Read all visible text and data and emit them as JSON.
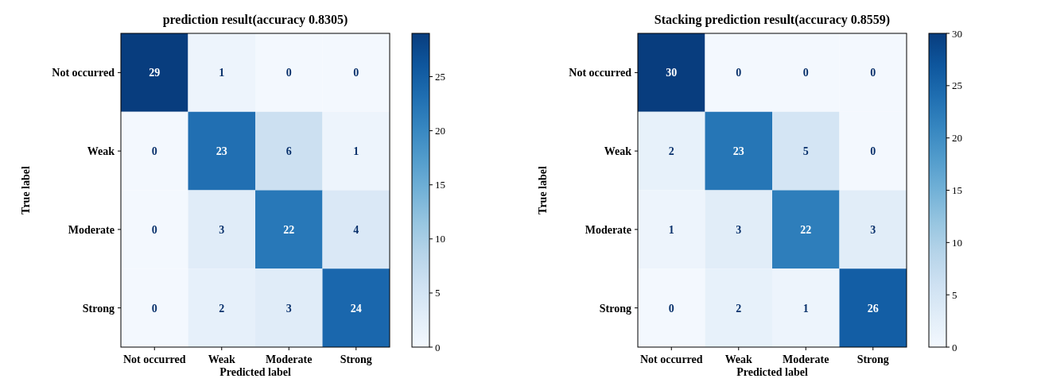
{
  "chart_data": [
    {
      "type": "heatmap",
      "title": "prediction result(accuracy 0.8305)",
      "xlabel": "Predicted label",
      "ylabel": "True label",
      "categories": [
        "Not occurred",
        "Weak",
        "Moderate",
        "Strong"
      ],
      "y_categories": [
        "Not occurred",
        "Weak",
        "Moderate",
        "Strong"
      ],
      "cells": [
        [
          29,
          1,
          0,
          0
        ],
        [
          0,
          23,
          6,
          1
        ],
        [
          0,
          3,
          22,
          4
        ],
        [
          0,
          2,
          3,
          24
        ]
      ],
      "clim": [
        0,
        29
      ],
      "cticks": [
        0,
        5,
        10,
        15,
        20,
        25
      ],
      "data_labels": true
    },
    {
      "type": "heatmap",
      "title": "Stacking prediction result(accuracy 0.8559)",
      "xlabel": "Predicted label",
      "ylabel": "True label",
      "categories": [
        "Not occurred",
        "Weak",
        "Moderate",
        "Strong"
      ],
      "y_categories": [
        "Not occurred",
        "Weak",
        "Moderate",
        "Strong"
      ],
      "cells": [
        [
          30,
          0,
          0,
          0
        ],
        [
          2,
          23,
          5,
          0
        ],
        [
          1,
          3,
          22,
          3
        ],
        [
          0,
          2,
          1,
          26
        ]
      ],
      "clim": [
        0,
        30
      ],
      "cticks": [
        0,
        5,
        10,
        15,
        20,
        25,
        30
      ],
      "data_labels": true
    }
  ]
}
